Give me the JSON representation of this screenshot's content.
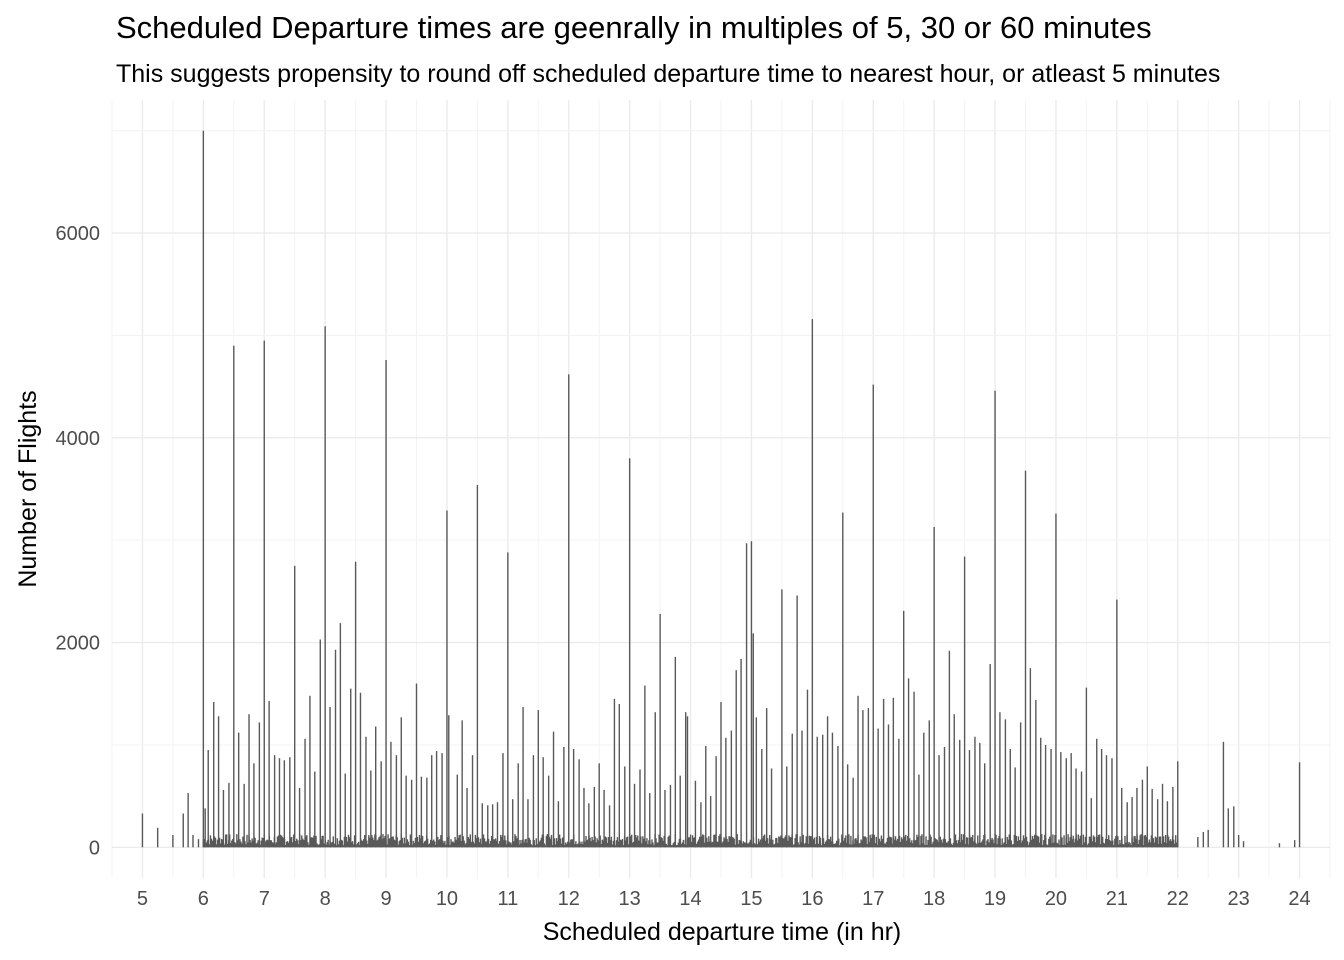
{
  "chart_data": {
    "type": "bar",
    "title": "Scheduled Departure times are geenrally in multiples of 5, 30 or 60 minutes",
    "subtitle": "This suggests propensity to round off scheduled departure time to nearest hour, or atleast 5 minutes",
    "xlabel": "Scheduled departure time (in hr)",
    "ylabel": "Number of Flights",
    "xlim": [
      4.5,
      24.5
    ],
    "ylim": [
      -300,
      7300
    ],
    "x_ticks": [
      5,
      6,
      7,
      8,
      9,
      10,
      11,
      12,
      13,
      14,
      15,
      16,
      17,
      18,
      19,
      20,
      21,
      22,
      23,
      24
    ],
    "x_tick_labels": [
      "5",
      "6",
      "7",
      "8",
      "9",
      "10",
      "11",
      "12",
      "13",
      "14",
      "15",
      "16",
      "17",
      "18",
      "19",
      "20",
      "21",
      "22",
      "23",
      "24"
    ],
    "y_ticks": [
      0,
      2000,
      4000,
      6000
    ],
    "y_tick_labels": [
      "0",
      "2000",
      "4000",
      "6000"
    ],
    "grid": true,
    "legend": "none",
    "bar_color": "#595959",
    "series": [
      {
        "values": [
          [
            5.0,
            330
          ],
          [
            5.25,
            190
          ],
          [
            5.5,
            120
          ],
          [
            5.67,
            330
          ],
          [
            5.75,
            530
          ],
          [
            5.83,
            120
          ],
          [
            5.92,
            80
          ],
          [
            6.0,
            7000
          ],
          [
            6.03,
            380
          ],
          [
            6.08,
            950
          ],
          [
            6.17,
            1420
          ],
          [
            6.25,
            1280
          ],
          [
            6.33,
            560
          ],
          [
            6.42,
            630
          ],
          [
            6.5,
            4900
          ],
          [
            6.58,
            1120
          ],
          [
            6.67,
            620
          ],
          [
            6.75,
            1300
          ],
          [
            6.83,
            820
          ],
          [
            6.92,
            1220
          ],
          [
            7.0,
            4950
          ],
          [
            7.08,
            1430
          ],
          [
            7.17,
            900
          ],
          [
            7.25,
            870
          ],
          [
            7.33,
            850
          ],
          [
            7.42,
            880
          ],
          [
            7.5,
            2750
          ],
          [
            7.58,
            580
          ],
          [
            7.67,
            1060
          ],
          [
            7.75,
            1480
          ],
          [
            7.83,
            740
          ],
          [
            7.92,
            2030
          ],
          [
            8.0,
            5090
          ],
          [
            8.08,
            1370
          ],
          [
            8.17,
            1930
          ],
          [
            8.25,
            2190
          ],
          [
            8.33,
            720
          ],
          [
            8.42,
            1550
          ],
          [
            8.5,
            2790
          ],
          [
            8.58,
            1510
          ],
          [
            8.67,
            1080
          ],
          [
            8.75,
            750
          ],
          [
            8.83,
            1180
          ],
          [
            8.92,
            840
          ],
          [
            9.0,
            4760
          ],
          [
            9.08,
            1030
          ],
          [
            9.17,
            900
          ],
          [
            9.25,
            1270
          ],
          [
            9.33,
            700
          ],
          [
            9.42,
            660
          ],
          [
            9.5,
            1600
          ],
          [
            9.58,
            690
          ],
          [
            9.67,
            680
          ],
          [
            9.75,
            900
          ],
          [
            9.83,
            940
          ],
          [
            9.92,
            920
          ],
          [
            10.0,
            3290
          ],
          [
            10.03,
            1290
          ],
          [
            10.17,
            710
          ],
          [
            10.25,
            1240
          ],
          [
            10.33,
            580
          ],
          [
            10.42,
            900
          ],
          [
            10.5,
            3540
          ],
          [
            10.58,
            430
          ],
          [
            10.67,
            410
          ],
          [
            10.75,
            420
          ],
          [
            10.83,
            440
          ],
          [
            10.92,
            920
          ],
          [
            11.0,
            2880
          ],
          [
            11.08,
            470
          ],
          [
            11.17,
            820
          ],
          [
            11.25,
            1370
          ],
          [
            11.33,
            470
          ],
          [
            11.42,
            900
          ],
          [
            11.5,
            1340
          ],
          [
            11.58,
            880
          ],
          [
            11.67,
            700
          ],
          [
            11.75,
            1130
          ],
          [
            11.83,
            450
          ],
          [
            11.92,
            980
          ],
          [
            12.0,
            4620
          ],
          [
            12.08,
            960
          ],
          [
            12.17,
            860
          ],
          [
            12.25,
            580
          ],
          [
            12.33,
            430
          ],
          [
            12.42,
            590
          ],
          [
            12.5,
            820
          ],
          [
            12.58,
            560
          ],
          [
            12.67,
            410
          ],
          [
            12.75,
            1450
          ],
          [
            12.83,
            1400
          ],
          [
            12.92,
            790
          ],
          [
            13.0,
            3800
          ],
          [
            13.08,
            620
          ],
          [
            13.17,
            760
          ],
          [
            13.25,
            1580
          ],
          [
            13.33,
            530
          ],
          [
            13.42,
            1320
          ],
          [
            13.5,
            2280
          ],
          [
            13.58,
            560
          ],
          [
            13.67,
            610
          ],
          [
            13.75,
            1860
          ],
          [
            13.83,
            700
          ],
          [
            13.92,
            1320
          ],
          [
            13.95,
            1280
          ],
          [
            14.08,
            650
          ],
          [
            14.17,
            440
          ],
          [
            14.25,
            990
          ],
          [
            14.33,
            500
          ],
          [
            14.42,
            890
          ],
          [
            14.5,
            1420
          ],
          [
            14.58,
            1070
          ],
          [
            14.67,
            1140
          ],
          [
            14.75,
            1730
          ],
          [
            14.83,
            1840
          ],
          [
            14.92,
            2970
          ],
          [
            15.0,
            2990
          ],
          [
            15.03,
            2090
          ],
          [
            15.08,
            1270
          ],
          [
            15.17,
            960
          ],
          [
            15.25,
            1360
          ],
          [
            15.33,
            770
          ],
          [
            15.5,
            2520
          ],
          [
            15.58,
            790
          ],
          [
            15.67,
            1110
          ],
          [
            15.75,
            2460
          ],
          [
            15.83,
            1140
          ],
          [
            15.92,
            1540
          ],
          [
            16.0,
            5160
          ],
          [
            16.08,
            1080
          ],
          [
            16.17,
            1100
          ],
          [
            16.25,
            1280
          ],
          [
            16.33,
            1120
          ],
          [
            16.42,
            990
          ],
          [
            16.5,
            3270
          ],
          [
            16.58,
            810
          ],
          [
            16.67,
            680
          ],
          [
            16.75,
            1480
          ],
          [
            16.83,
            1340
          ],
          [
            16.92,
            1360
          ],
          [
            17.0,
            4520
          ],
          [
            17.08,
            1160
          ],
          [
            17.17,
            1450
          ],
          [
            17.25,
            1200
          ],
          [
            17.33,
            1460
          ],
          [
            17.42,
            1060
          ],
          [
            17.5,
            2310
          ],
          [
            17.58,
            1650
          ],
          [
            17.67,
            1520
          ],
          [
            17.75,
            710
          ],
          [
            17.83,
            1120
          ],
          [
            17.92,
            1240
          ],
          [
            18.0,
            3130
          ],
          [
            18.08,
            900
          ],
          [
            18.17,
            980
          ],
          [
            18.25,
            1920
          ],
          [
            18.33,
            1300
          ],
          [
            18.42,
            1050
          ],
          [
            18.5,
            2840
          ],
          [
            18.58,
            950
          ],
          [
            18.67,
            1080
          ],
          [
            18.75,
            1020
          ],
          [
            18.83,
            820
          ],
          [
            18.92,
            1790
          ],
          [
            19.0,
            4460
          ],
          [
            19.08,
            1320
          ],
          [
            19.17,
            1250
          ],
          [
            19.25,
            960
          ],
          [
            19.33,
            780
          ],
          [
            19.42,
            1220
          ],
          [
            19.5,
            3680
          ],
          [
            19.58,
            1750
          ],
          [
            19.67,
            1440
          ],
          [
            19.75,
            1070
          ],
          [
            19.83,
            1000
          ],
          [
            19.92,
            960
          ],
          [
            20.0,
            3260
          ],
          [
            20.08,
            930
          ],
          [
            20.17,
            870
          ],
          [
            20.25,
            920
          ],
          [
            20.33,
            770
          ],
          [
            20.42,
            740
          ],
          [
            20.5,
            1560
          ],
          [
            20.58,
            480
          ],
          [
            20.67,
            1060
          ],
          [
            20.75,
            960
          ],
          [
            20.83,
            900
          ],
          [
            20.92,
            870
          ],
          [
            21.0,
            2420
          ],
          [
            21.08,
            580
          ],
          [
            21.17,
            440
          ],
          [
            21.25,
            490
          ],
          [
            21.33,
            580
          ],
          [
            21.42,
            660
          ],
          [
            21.5,
            790
          ],
          [
            21.58,
            570
          ],
          [
            21.67,
            470
          ],
          [
            21.75,
            620
          ],
          [
            21.83,
            450
          ],
          [
            21.92,
            590
          ],
          [
            22.0,
            840
          ],
          [
            22.33,
            100
          ],
          [
            22.42,
            150
          ],
          [
            22.5,
            170
          ],
          [
            22.75,
            1030
          ],
          [
            22.83,
            380
          ],
          [
            22.92,
            400
          ],
          [
            23.0,
            120
          ],
          [
            23.08,
            60
          ],
          [
            23.67,
            40
          ],
          [
            23.92,
            70
          ],
          [
            24.0,
            830
          ]
        ]
      }
    ]
  }
}
